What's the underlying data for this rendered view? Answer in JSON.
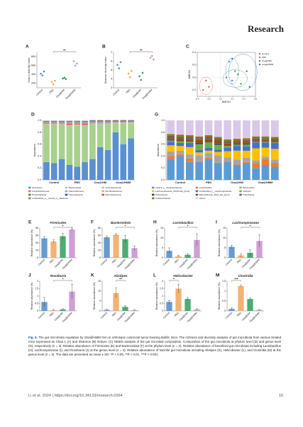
{
  "header": {
    "journal": "Research"
  },
  "figure": {
    "colors": [
      "#4e8ac8",
      "#f2a65a",
      "#2e9e5b",
      "#c58fcf"
    ],
    "panels": [
      {
        "label": "A",
        "type": "dot",
        "ylabel": "Chao 1 diversity index",
        "categories": [
          "Control",
          "PBS",
          "Osa@HM",
          "Osa@HMM"
        ],
        "values": [
          [
            420,
            380,
            470
          ],
          [
            230,
            180,
            260
          ],
          [
            310,
            330,
            300
          ],
          [
            700,
            600,
            650
          ]
        ],
        "ylim": [
          100,
          900
        ],
        "yticks": [
          200,
          400,
          600,
          800
        ],
        "significance": "**"
      },
      {
        "label": "B",
        "type": "dot",
        "ylabel": "Shannon diversity index",
        "categories": [
          "Control",
          "PBS",
          "Osa@HM",
          "Osa@HMM"
        ],
        "values": [
          [
            5.6,
            5.2,
            5.9
          ],
          [
            4.6,
            4.2,
            4.9
          ],
          [
            4.3,
            3.9,
            4.7
          ],
          [
            6.4,
            6.6,
            6.2
          ]
        ],
        "ylim": [
          3,
          7
        ],
        "yticks": [
          3,
          4,
          5,
          6,
          7
        ],
        "significance": "**"
      },
      {
        "label": "C",
        "type": "scatter",
        "xlabel": "NMDS1",
        "ylabel": "NMDS2",
        "xlim": [
          -0.4,
          0.6
        ],
        "xticks": [
          -0.4,
          -0.2,
          {
            "value": 0,
            "label": "0.0"
          },
          0.2,
          0.4,
          0.6
        ],
        "ylim": [
          -0.3,
          0.4
        ],
        "yticks": [
          -0.2,
          {
            "value": 0,
            "label": "0.0"
          },
          0.2,
          0.4
        ],
        "series": [
          {
            "name": "Control",
            "color": "#4e8ac8",
            "x": [
              0.15,
              0.25,
              0.2
            ],
            "y": [
              0.25,
              0.1,
              -0.05
            ]
          },
          {
            "name": "PBS",
            "color": "#e8603c",
            "x": [
              -0.25,
              -0.2,
              -0.3
            ],
            "y": [
              -0.05,
              -0.15,
              -0.2
            ]
          },
          {
            "name": "Osa@HM",
            "color": "#2e9e5b",
            "x": [
              0.1,
              0.35,
              0.3
            ],
            "y": [
              0.0,
              -0.1,
              0.05
            ]
          },
          {
            "name": "Osa@HMM",
            "color": "#2a7fb0",
            "x": [
              0.2,
              0.45,
              0.5
            ],
            "y": [
              0.3,
              0.1,
              -0.15
            ]
          }
        ]
      },
      {
        "label": "D",
        "type": "stacked_bar",
        "ylabel": "Abundance",
        "groups": [
          "Control",
          "PBS",
          "Osa@HM",
          "Osa@HMM"
        ],
        "ylim": [
          0,
          1
        ],
        "yticks": [
          {
            "value": 0,
            "label": "0.0"
          },
          0.2,
          0.4,
          0.6,
          0.8,
          {
            "value": 1,
            "label": "1.0"
          }
        ],
        "series": [
          {
            "name": "Firmicutes",
            "color": "#5b8fd0",
            "values": [
              0.3,
              0.28,
              0.35,
              0.25,
              0.22,
              0.3,
              0.35,
              0.55,
              0.5,
              0.8,
              0.6,
              0.7
            ]
          },
          {
            "name": "Bacteroidota",
            "color": "#a9d18e",
            "values": [
              0.63,
              0.65,
              0.58,
              0.66,
              0.7,
              0.61,
              0.59,
              0.39,
              0.44,
              0.15,
              0.35,
              0.25
            ]
          },
          {
            "name": "Actinobacteriota",
            "color": "#f4b183",
            "values": [
              0.01,
              0.01,
              0.01,
              0.01,
              0.01,
              0.01,
              0.01,
              0.01,
              0.01,
              0.01,
              0.01,
              0.01
            ]
          },
          {
            "name": "Campilobacterota",
            "color": "#e06666",
            "values": [
              0.01,
              0.01,
              0.01,
              0.03,
              0.02,
              0.03,
              0.01,
              0.01,
              0.01,
              0,
              0,
              0
            ]
          },
          {
            "name": "Patescibacteria",
            "color": "#8faadc",
            "values": [
              0.01,
              0.01,
              0.01,
              0.01,
              0.01,
              0.01,
              0.01,
              0.01,
              0.01,
              0.01,
              0.01,
              0.01
            ]
          },
          {
            "name": "Desulfobacterota",
            "color": "#c9a0dc",
            "values": [
              0.01,
              0.01,
              0.01,
              0.01,
              0.01,
              0.01,
              0.01,
              0.01,
              0.01,
              0.01,
              0.01,
              0.01
            ]
          },
          {
            "name": "Proteobacteria",
            "color": "#548235",
            "values": [
              0.01,
              0.01,
              0.01,
              0.01,
              0.01,
              0.01,
              0.01,
              0.01,
              0.01,
              0.01,
              0.01,
              0.01
            ]
          },
          {
            "name": "Cyanobacteria",
            "color": "#2f5597",
            "values": [
              0.005,
              0.005,
              0.005,
              0.005,
              0.005,
              0.005,
              0.005,
              0.005,
              0.005,
              0.005,
              0.005,
              0.005
            ]
          },
          {
            "name": "Deferribacterota",
            "color": "#c55a11",
            "values": [
              0.005,
              0.005,
              0.005,
              0.005,
              0.005,
              0.005,
              0.005,
              0.005,
              0.005,
              0.005,
              0.005,
              0.005
            ]
          },
          {
            "name": "unclassified_k__norank_d__Bacteria",
            "color": "#7f7f7f",
            "values": [
              0.005,
              0.005,
              0.005,
              0.005,
              0.005,
              0.005,
              0.005,
              0.005,
              0.005,
              0.005,
              0.005,
              0.005
            ]
          }
        ]
      },
      {
        "label": "G",
        "type": "stacked_bar",
        "ylabel": "Abundance",
        "groups": [
          "Control",
          "PBS",
          "Osa@HM",
          "Osa@HMM"
        ],
        "ylim": [
          0,
          1
        ],
        "yticks": [
          {
            "value": 0,
            "label": "0.0"
          },
          0.2,
          0.4,
          0.6,
          0.8,
          {
            "value": 1,
            "label": "1.0"
          }
        ],
        "series": [
          {
            "name": "norank_f__Muribaculaceae",
            "color": "#5b9bd5",
            "values": [
              0.35,
              0.4,
              0.3,
              0.3,
              0.35,
              0.28,
              0.3,
              0.25,
              0.28,
              0.2,
              0.25,
              0.22
            ]
          },
          {
            "name": "Lactobacillus",
            "color": "#ed7d31",
            "values": [
              0.05,
              0.03,
              0.06,
              0.01,
              0.02,
              0.01,
              0.02,
              0.01,
              0.02,
              0.08,
              0.1,
              0.06
            ]
          },
          {
            "name": "Bacteroides",
            "color": "#a5a5a5",
            "values": [
              0.08,
              0.06,
              0.07,
              0.1,
              0.08,
              0.12,
              0.06,
              0.08,
              0.07,
              0.05,
              0.04,
              0.06
            ]
          },
          {
            "name": "Lachnospiraceae_NK4A136_group",
            "color": "#ffc000",
            "values": [
              0.1,
              0.08,
              0.12,
              0.05,
              0.04,
              0.06,
              0.1,
              0.15,
              0.12,
              0.2,
              0.15,
              0.18
            ]
          },
          {
            "name": "unclassified_f__Lachnospiraceae",
            "color": "#4472c4",
            "values": [
              0.06,
              0.05,
              0.07,
              0.04,
              0.05,
              0.04,
              0.06,
              0.08,
              0.07,
              0.1,
              0.09,
              0.1
            ]
          },
          {
            "name": "Alistipes",
            "color": "#70ad47",
            "values": [
              0.02,
              0.03,
              0.02,
              0.1,
              0.09,
              0.08,
              0.03,
              0.02,
              0.03,
              0.01,
              0.01,
              0.01
            ]
          },
          {
            "name": "Helicobacter",
            "color": "#264478",
            "values": [
              0.01,
              0.01,
              0.01,
              0.02,
              0.01,
              0.02,
              0.01,
              0.01,
              0.01,
              0,
              0,
              0
            ]
          },
          {
            "name": "Rikenellaceae_RC9_gut_group",
            "color": "#9e480e",
            "values": [
              0.03,
              0.04,
              0.03,
              0.05,
              0.04,
              0.05,
              0.03,
              0.03,
              0.04,
              0.02,
              0.03,
              0.02
            ]
          },
          {
            "name": "Odoribacter",
            "color": "#636363",
            "values": [
              0.04,
              0.03,
              0.04,
              0.03,
              0.04,
              0.03,
              0.04,
              0.03,
              0.03,
              0.04,
              0.03,
              0.04
            ]
          },
          {
            "name": "Colidextribacter",
            "color": "#997300",
            "values": [
              0.03,
              0.03,
              0.03,
              0.03,
              0.03,
              0.03,
              0.03,
              0.03,
              0.03,
              0.03,
              0.03,
              0.03
            ]
          },
          {
            "name": "others",
            "color": "#d9c8e8",
            "values": [
              0.23,
              0.24,
              0.25,
              0.27,
              0.25,
              0.28,
              0.32,
              0.31,
              0.3,
              0.27,
              0.27,
              0.28
            ]
          }
        ]
      },
      {
        "label": "E",
        "type": "bar",
        "title": "Firmicutes",
        "ylabel": "Relative abundance (%)",
        "categories": [
          "Control",
          "PBS",
          "Osa@HM",
          "Osa@HMM"
        ],
        "values": [
          52,
          44,
          58,
          76
        ],
        "errors": [
          5,
          4,
          8,
          4
        ],
        "ylim": [
          0,
          80
        ],
        "yticks": [
          0,
          20,
          40,
          60,
          80
        ],
        "significance": "*"
      },
      {
        "label": "F",
        "type": "bar",
        "title": "Bacteroidota",
        "ylabel": "Relative abundance (%)",
        "categories": [
          "Control",
          "PBS",
          "Osa@HM",
          "Osa@HMM"
        ],
        "values": [
          55,
          62,
          50,
          26
        ],
        "errors": [
          4,
          3,
          10,
          6
        ],
        "ylim": [
          0,
          80
        ],
        "yticks": [
          0,
          20,
          40,
          60,
          80
        ],
        "significance": "*"
      },
      {
        "label": "H",
        "type": "bar",
        "title": "Lactobacillus",
        "ylabel": "Relative abundance (%)",
        "categories": [
          "Control",
          "PBS",
          "Osa@HM",
          "Osa@HMM"
        ],
        "values": [
          3.5,
          0.8,
          1.5,
          9
        ],
        "errors": [
          1.5,
          0.5,
          0.6,
          3
        ],
        "ylim": [
          0,
          15
        ],
        "yticks": [
          0,
          5,
          10,
          15
        ],
        "significance": "*"
      },
      {
        "label": "I",
        "type": "bar",
        "title": "Lachnospiraceae",
        "ylabel": "Relative abundance (%)",
        "categories": [
          "Control",
          "PBS",
          "Osa@HM",
          "Osa@HMM"
        ],
        "values": [
          5.5,
          1.2,
          2.5,
          8.5
        ],
        "errors": [
          0.8,
          0.8,
          1.5,
          3
        ],
        "ylim": [
          0,
          15
        ],
        "yticks": [
          0,
          5,
          10,
          15
        ],
        "significance": "*"
      },
      {
        "label": "J",
        "type": "bar",
        "title": "Roseburia",
        "ylabel": "Relative abundance (%)",
        "categories": [
          "Control",
          "PBS",
          "Osa@HM",
          "Osa@HMM"
        ],
        "values": [
          0.6,
          0.05,
          0.1,
          1.3
        ],
        "errors": [
          0.3,
          0.05,
          0.05,
          0.5
        ],
        "ylim": [
          0,
          2
        ],
        "yticks": [
          0,
          0.5,
          1,
          1.5,
          2
        ],
        "significance": "*"
      },
      {
        "label": "K",
        "type": "bar",
        "title": "Alistipes",
        "ylabel": "Relative abundance (%)",
        "categories": [
          "Control",
          "PBS",
          "Osa@HM",
          "Osa@HMM"
        ],
        "values": [
          0.5,
          9,
          2,
          0.4
        ],
        "errors": [
          0.3,
          2.5,
          0.6,
          0.2
        ],
        "ylim": [
          0,
          15
        ],
        "yticks": [
          0,
          5,
          10,
          15
        ],
        "significance": "**"
      },
      {
        "label": "L",
        "type": "bar",
        "title": "Helicobacter",
        "ylabel": "Relative abundance (%)",
        "categories": [
          "Control",
          "PBS",
          "Osa@HM",
          "Osa@HMM"
        ],
        "values": [
          0.6,
          1.5,
          0.8,
          0.1
        ],
        "errors": [
          0.1,
          0.3,
          0.1,
          0.05
        ],
        "ylim": [
          0,
          2
        ],
        "yticks": [
          0,
          0.5,
          1,
          1.5,
          2
        ],
        "significance": "*"
      },
      {
        "label": "M",
        "type": "bar",
        "title": "Clostridia",
        "ylabel": "Relative abundance (%)",
        "categories": [
          "Control",
          "PBS",
          "Osa@HM",
          "Osa@HMM"
        ],
        "values": [
          0.1,
          1.25,
          0.6,
          0.05
        ],
        "errors": [
          0.05,
          0.05,
          0.05,
          0.02
        ],
        "ylim": [
          0,
          1.5
        ],
        "yticks": [
          0,
          0.5,
          1,
          1.5
        ],
        "significance": "***"
      }
    ]
  },
  "caption": {
    "label": "Fig. 6.",
    "text": "The gut microbiota regulation by Osa@HMM Gel on orthotopic colorectal tumor-bearing Balb/c mice. The richness and diversity analysis of gut microbiota from various treated mice expressed as Chao 1 (A) and Shannon (B) indices. (C) NMDS analysis of the gut microbial composition. Composition of the gut microbiota at phylum level (D) and genus level (G), respectively (n = 3). Relative abundance of Firmicutes (E) and Bacteroidota (F) at the phylum level (n = 3). Relative abundance of beneficial gut microbiota including Lactobacillus (H), Lachnospiraceae (I), and Roseburia (J) at the genus level (n = 3). Relative abundance of harmful gut microbiota including Alistipes (K), Helicobacter (L), and Clostridia (M) at the genus level (n = 3). The data are presented as mean ± SD. *P < 0.05, **P < 0.01, ***P < 0.001."
  },
  "footer": {
    "citation": "Li et al. 2024 | https://doi.org/10.34133/research.0364",
    "page": "10"
  }
}
